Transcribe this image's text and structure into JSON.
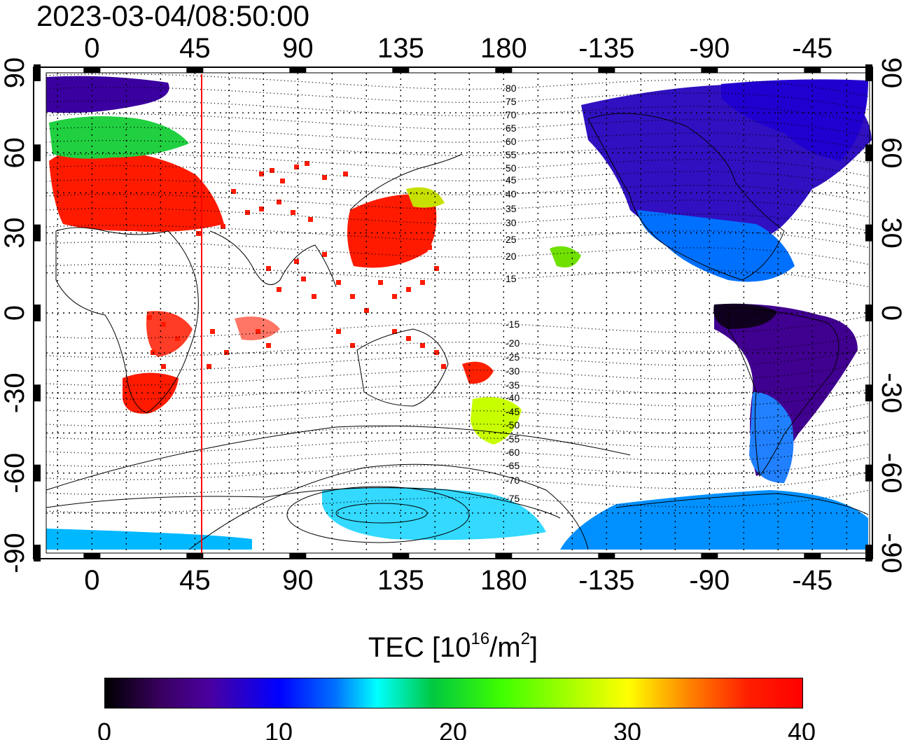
{
  "timestamp": "2023-03-04/08:50:00",
  "map": {
    "top_lon_labels": [
      "0",
      "45",
      "90",
      "135",
      "180",
      "-135",
      "-90",
      "-45"
    ],
    "bottom_lon_labels": [
      "0",
      "45",
      "90",
      "135",
      "180",
      "-135",
      "-90",
      "-45"
    ],
    "left_lat_labels": [
      "90",
      "60",
      "30",
      "0",
      "-30",
      "-60",
      "-90"
    ],
    "right_lat_labels": [
      "90",
      "60",
      "30",
      "0",
      "-30",
      "-60",
      "-90"
    ],
    "contour_labels": [
      "80",
      "75",
      "70",
      "65",
      "60",
      "55",
      "50",
      "45",
      "40",
      "35",
      "30",
      "25",
      "20",
      "15",
      "-15",
      "-20",
      "-25",
      "-30",
      "-35",
      "-40",
      "-45",
      "-50",
      "-55",
      "-60",
      "-65",
      "-70",
      "-75"
    ],
    "marker_line_lon": 47,
    "marker_color": "#ff0000"
  },
  "colorbar": {
    "title_main": "TEC  [10",
    "title_sup1": "16",
    "title_mid": "/m",
    "title_sup2": "2",
    "title_end": "]",
    "min": 0,
    "max": 40,
    "tick_labels": [
      "0",
      "10",
      "20",
      "30",
      "40"
    ],
    "colors": [
      "#000000",
      "#4a00a0",
      "#0000ff",
      "#00ffff",
      "#00c840",
      "#ffff00",
      "#ff0000"
    ]
  }
}
